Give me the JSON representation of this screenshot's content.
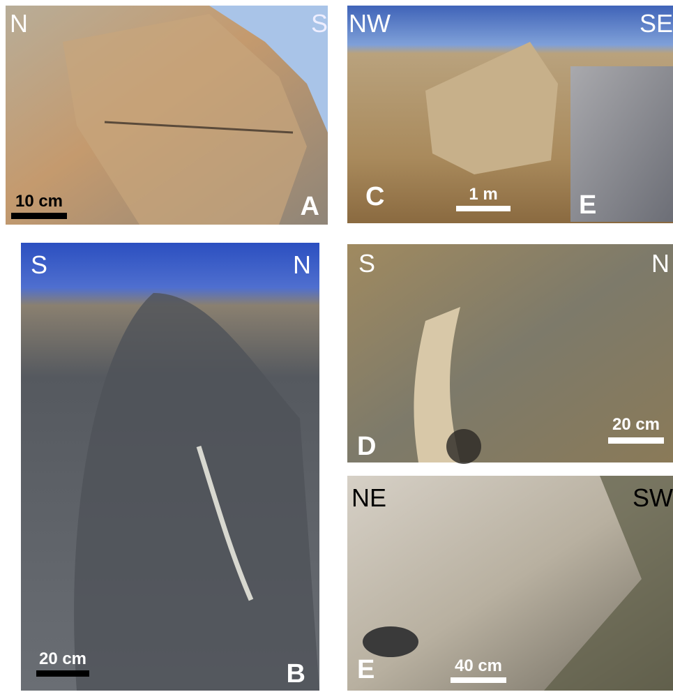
{
  "panels": [
    {
      "label": "A",
      "left_direction": "N",
      "right_direction": "S",
      "scale_bar": "10 cm"
    },
    {
      "label": "C",
      "left_direction": "NW",
      "right_direction": "SE",
      "scale_bar": "1 m",
      "inset_label": "E"
    },
    {
      "label": "B",
      "left_direction": "S",
      "right_direction": "N",
      "scale_bar": "20 cm"
    },
    {
      "label": "D",
      "left_direction": "S",
      "right_direction": "N",
      "scale_bar": "20 cm"
    },
    {
      "label": "E",
      "left_direction": "NE",
      "right_direction": "SW",
      "scale_bar": "40 cm"
    }
  ]
}
